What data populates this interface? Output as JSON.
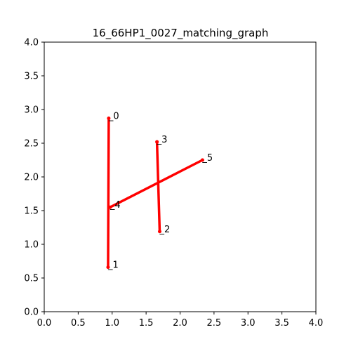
{
  "chart_data": {
    "type": "graph",
    "title": "16_66HP1_0027_matching_graph",
    "xlabel": "",
    "ylabel": "",
    "xlim": [
      0.0,
      4.0
    ],
    "ylim": [
      0.0,
      4.0
    ],
    "xticks": [
      "0.0",
      "0.5",
      "1.0",
      "1.5",
      "2.0",
      "2.5",
      "3.0",
      "3.5",
      "4.0"
    ],
    "yticks": [
      "0.0",
      "0.5",
      "1.0",
      "1.5",
      "2.0",
      "2.5",
      "3.0",
      "3.5",
      "4.0"
    ],
    "grid": false,
    "edge_color": "#ff0000",
    "nodes": [
      {
        "id": "0",
        "x": 0.95,
        "y": 2.87
      },
      {
        "id": "1",
        "x": 0.94,
        "y": 0.66
      },
      {
        "id": "2",
        "x": 1.7,
        "y": 1.19
      },
      {
        "id": "3",
        "x": 1.66,
        "y": 2.52
      },
      {
        "id": "4",
        "x": 0.97,
        "y": 1.55
      },
      {
        "id": "5",
        "x": 2.33,
        "y": 2.25
      }
    ],
    "edges": [
      {
        "source": "0",
        "target": "1"
      },
      {
        "source": "3",
        "target": "2"
      },
      {
        "source": "4",
        "target": "5"
      }
    ]
  }
}
